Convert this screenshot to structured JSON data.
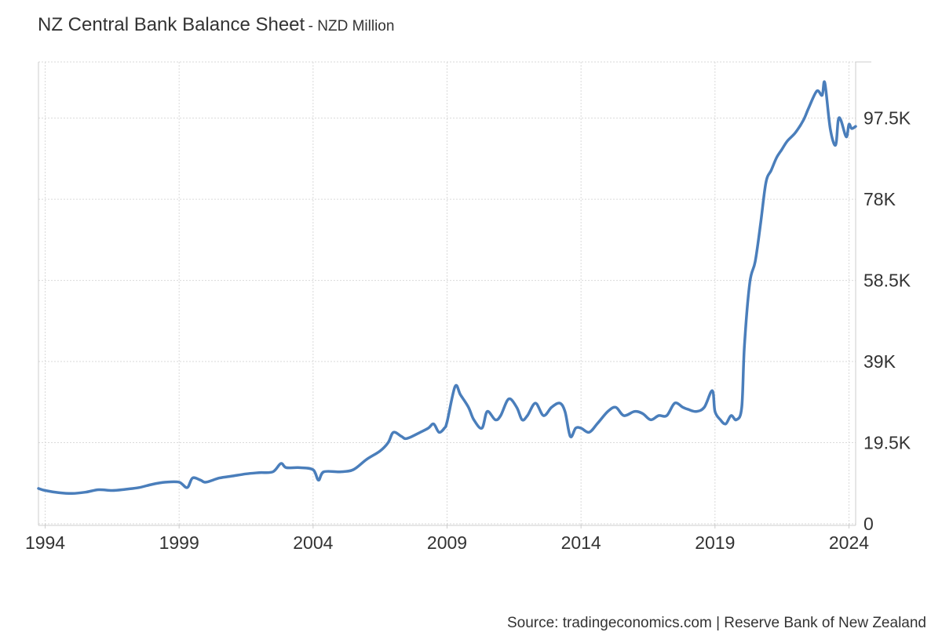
{
  "title": "NZ Central Bank Balance Sheet",
  "subtitle": "- NZD Million",
  "source": "Source: tradingeconomics.com | Reserve Bank of New Zealand",
  "colors": {
    "line": "#4a7ebb",
    "grid": "#d9d9d9",
    "axis": "#cccccc"
  },
  "chart_data": {
    "type": "line",
    "title": "NZ Central Bank Balance Sheet",
    "subtitle": "- NZD Million",
    "xlabel": "",
    "ylabel": "",
    "x_tick_labels": [
      "1994",
      "1999",
      "2004",
      "2009",
      "2014",
      "2019",
      "2024"
    ],
    "y_tick_labels": [
      "0",
      "19.5K",
      "39K",
      "58.5K",
      "78K",
      "97.5K"
    ],
    "y_ticks": [
      0,
      19500,
      39000,
      58500,
      78000,
      97500
    ],
    "xlim": [
      1993.75,
      2024.25
    ],
    "ylim": [
      0,
      111000
    ],
    "grid": true,
    "y_axis_side": "right",
    "series": [
      {
        "x": [
          1993.75,
          1994.0,
          1994.5,
          1995.0,
          1995.5,
          1996.0,
          1996.5,
          1997.0,
          1997.5,
          1998.0,
          1998.5,
          1999.0,
          1999.3,
          1999.5,
          1999.8,
          2000.0,
          2000.5,
          2001.0,
          2001.5,
          2002.0,
          2002.5,
          2002.8,
          2003.0,
          2003.5,
          2004.0,
          2004.2,
          2004.4,
          2005.0,
          2005.5,
          2006.0,
          2006.5,
          2006.8,
          2007.0,
          2007.3,
          2007.5,
          2008.0,
          2008.3,
          2008.5,
          2008.7,
          2008.9,
          2009.0,
          2009.3,
          2009.5,
          2009.8,
          2010.0,
          2010.3,
          2010.5,
          2010.8,
          2011.0,
          2011.3,
          2011.6,
          2011.8,
          2012.0,
          2012.3,
          2012.6,
          2012.9,
          2013.2,
          2013.4,
          2013.6,
          2013.8,
          2014.0,
          2014.3,
          2014.6,
          2015.0,
          2015.3,
          2015.6,
          2016.0,
          2016.3,
          2016.6,
          2016.9,
          2017.2,
          2017.5,
          2017.8,
          2018.0,
          2018.3,
          2018.6,
          2018.9,
          2019.0,
          2019.2,
          2019.4,
          2019.6,
          2019.8,
          2020.0,
          2020.1,
          2020.3,
          2020.5,
          2020.7,
          2020.9,
          2021.1,
          2021.3,
          2021.5,
          2021.7,
          2022.0,
          2022.3,
          2022.5,
          2022.8,
          2023.0,
          2023.1,
          2023.3,
          2023.5,
          2023.6,
          2023.7,
          2023.9,
          2024.0,
          2024.1,
          2024.25
        ],
        "values": [
          8500,
          8000,
          7500,
          7300,
          7600,
          8200,
          8000,
          8300,
          8700,
          9500,
          10000,
          10000,
          8700,
          11000,
          10500,
          10000,
          11000,
          11500,
          12000,
          12300,
          12500,
          14500,
          13500,
          13500,
          13000,
          10500,
          12500,
          12500,
          13000,
          15500,
          17500,
          19500,
          22000,
          21000,
          20500,
          22000,
          23000,
          24000,
          22000,
          23000,
          24500,
          33000,
          31000,
          28000,
          25000,
          23000,
          27000,
          25000,
          26000,
          30000,
          28000,
          25000,
          26000,
          29000,
          26000,
          28000,
          29000,
          27000,
          21000,
          23000,
          23000,
          22000,
          24000,
          27000,
          28000,
          26000,
          27000,
          26500,
          25000,
          26000,
          26000,
          29000,
          28000,
          27500,
          27000,
          28000,
          32000,
          27000,
          25000,
          24000,
          26000,
          25000,
          28000,
          43000,
          58000,
          63000,
          72000,
          82000,
          85000,
          88000,
          90000,
          92000,
          94000,
          97000,
          100000,
          104000,
          103000,
          106000,
          95000,
          91000,
          97000,
          97000,
          93000,
          96000,
          95000,
          95500
        ]
      }
    ]
  }
}
